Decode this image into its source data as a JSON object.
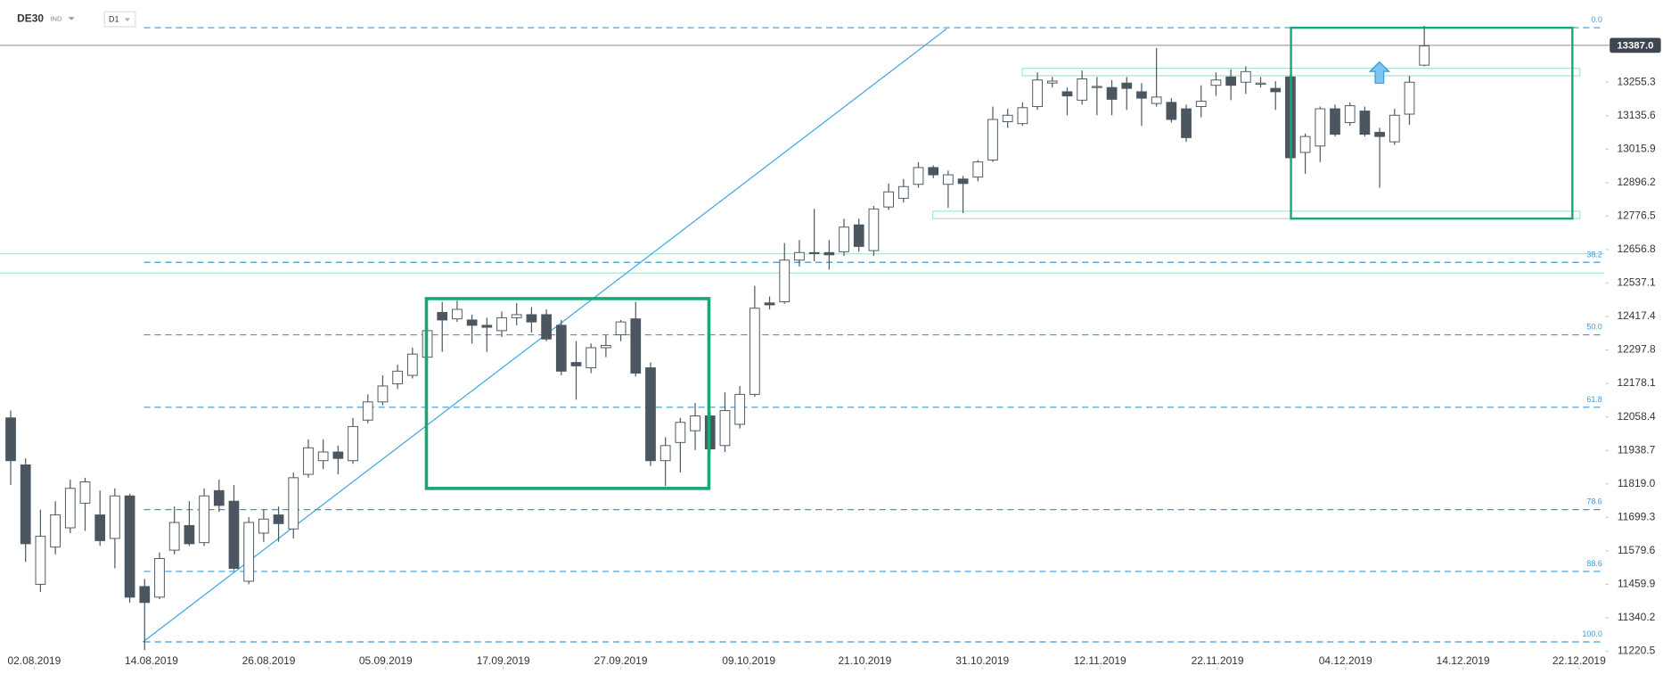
{
  "chart_data": {
    "type": "candlestick",
    "title": "DE30",
    "subtitle": "IND",
    "timeframe": "D1",
    "up_color": "#ffffff",
    "down_color": "#4b5660",
    "outline_color": "#4b5660",
    "open": [
      12055,
      11887,
      11460,
      11593,
      11662,
      11750,
      11708,
      11624,
      11776,
      11452,
      11414,
      11582,
      11670,
      11609,
      11795,
      11757,
      11471,
      11643,
      11708,
      11658,
      11853,
      11902,
      11933,
      11902,
      12047,
      12112,
      12177,
      12207,
      12272,
      12432,
      12409,
      12405,
      12386,
      12367,
      12413,
      12424,
      12424,
      12386,
      12253,
      12234,
      12306,
      12352,
      12409,
      12234,
      11902,
      11967,
      12009,
      12062,
      11956,
      12032,
      12139,
      12466,
      12470,
      12619,
      12646,
      12646,
      12649,
      12745,
      12653,
      12809,
      12840,
      12890,
      12950,
      12890,
      12909,
      12916,
      12977,
      13114,
      13107,
      13168,
      13252,
      13221,
      13191,
      13236,
      13236,
      13252,
      13221,
      13179,
      13183,
      13160,
      13168,
      13244,
      13274,
      13255,
      13248,
      13233,
      13274,
      13004,
      13027,
      13160,
      13111,
      13152,
      13076,
      13042,
      13141,
      13316
    ],
    "high": [
      12081,
      11910,
      11727,
      11757,
      11834,
      11841,
      11795,
      11803,
      11784,
      11479,
      11574,
      11738,
      11757,
      11803,
      11834,
      11815,
      11700,
      11727,
      11738,
      11860,
      11978,
      11978,
      11956,
      12055,
      12139,
      12207,
      12245,
      12306,
      12386,
      12470,
      12474,
      12424,
      12413,
      12436,
      12466,
      12451,
      12443,
      12405,
      12329,
      12321,
      12352,
      12405,
      12470,
      12253,
      11986,
      12055,
      12108,
      12081,
      12146,
      12169,
      12527,
      12489,
      12680,
      12691,
      12802,
      12691,
      12767,
      12767,
      12813,
      12893,
      12909,
      12970,
      12958,
      12939,
      12920,
      12977,
      13168,
      13160,
      13183,
      13290,
      13274,
      13236,
      13297,
      13274,
      13263,
      13274,
      13252,
      13377,
      13198,
      13175,
      13244,
      13290,
      13301,
      13312,
      13274,
      13259,
      13282,
      13072,
      13168,
      13175,
      13183,
      13168,
      13092,
      13160,
      13278,
      13457
    ],
    "low": [
      11815,
      11540,
      11433,
      11567,
      11643,
      11651,
      11597,
      11517,
      11395,
      11225,
      11407,
      11567,
      11597,
      11597,
      11719,
      11510,
      11460,
      11612,
      11612,
      11624,
      11841,
      11872,
      11853,
      11891,
      12036,
      12100,
      12158,
      12196,
      12253,
      12291,
      12398,
      12321,
      12291,
      12344,
      12386,
      12360,
      12329,
      12207,
      12120,
      12215,
      12272,
      12329,
      12203,
      11883,
      11811,
      11860,
      11940,
      11929,
      11933,
      12017,
      12131,
      12443,
      12463,
      12596,
      12615,
      12585,
      12634,
      12649,
      12634,
      12798,
      12825,
      12878,
      12912,
      12806,
      12787,
      12901,
      12970,
      13092,
      13099,
      13156,
      13236,
      13137,
      13175,
      13137,
      13137,
      13156,
      13099,
      13168,
      13111,
      13042,
      13130,
      13206,
      13191,
      13213,
      13236,
      13156,
      12977,
      12928,
      12970,
      13061,
      13099,
      13061,
      12878,
      13031,
      13103,
      13312
    ],
    "close": [
      11902,
      11605,
      11632,
      11708,
      11803,
      11826,
      11616,
      11776,
      11414,
      11395,
      11552,
      11681,
      11605,
      11776,
      11742,
      11517,
      11681,
      11693,
      11677,
      11841,
      11948,
      11933,
      11910,
      12024,
      12112,
      12169,
      12222,
      12283,
      12367,
      12405,
      12443,
      12386,
      12379,
      12413,
      12424,
      12398,
      12337,
      12222,
      12241,
      12306,
      12314,
      12398,
      12215,
      11902,
      11956,
      12039,
      12062,
      11944,
      12081,
      12139,
      12447,
      12459,
      12619,
      12646,
      12642,
      12638,
      12737,
      12668,
      12802,
      12863,
      12882,
      12950,
      12924,
      12924,
      12893,
      12970,
      13122,
      13137,
      13164,
      13263,
      13259,
      13206,
      13267,
      13240,
      13194,
      13233,
      13198,
      13202,
      13122,
      13057,
      13187,
      13263,
      13244,
      13293,
      13252,
      13221,
      12985,
      13061,
      13160,
      13069,
      13171,
      13069,
      13061,
      13137,
      13255,
      13385
    ],
    "xlim": [
      -0.72,
      107.1
    ],
    "xticks": [
      {
        "value": 1.58,
        "label": "02.08.2019"
      },
      {
        "value": 9.46,
        "label": "14.08.2019"
      },
      {
        "value": 17.34,
        "label": "26.08.2019"
      },
      {
        "value": 25.2,
        "label": "05.09.2019"
      },
      {
        "value": 33.1,
        "label": "17.09.2019"
      },
      {
        "value": 41.0,
        "label": "27.09.2019"
      },
      {
        "value": 49.6,
        "label": "09.10.2019"
      },
      {
        "value": 57.4,
        "label": "21.10.2019"
      },
      {
        "value": 65.3,
        "label": "31.10.2019"
      },
      {
        "value": 73.2,
        "label": "12.11.2019"
      },
      {
        "value": 81.1,
        "label": "22.11.2019"
      },
      {
        "value": 89.7,
        "label": "04.12.2019"
      },
      {
        "value": 97.6,
        "label": "14.12.2019"
      },
      {
        "value": 105.4,
        "label": "22.12.2019"
      }
    ],
    "ylim": [
      11166,
      13549
    ],
    "yticks": [
      13255.3,
      13135.6,
      13015.9,
      12896.2,
      12776.5,
      12656.8,
      12537.1,
      12417.4,
      12297.8,
      12178.1,
      12058.4,
      11938.7,
      {
        "value": 11819,
        "label": "11819.0"
      },
      11699.3,
      11579.6,
      11459.9,
      11340.2,
      11220.5
    ],
    "last_price": {
      "value": 13387,
      "label": "13387.0"
    },
    "fib_color": "#3a9ad9",
    "fib_levels": [
      {
        "label": "0.0",
        "value": 13450
      },
      {
        "label": "38.2",
        "value": 12611
      },
      {
        "label": "50.0",
        "value": 12352
      },
      {
        "label": "61.8",
        "value": 12093
      },
      {
        "label": "78.6",
        "value": 11727
      },
      {
        "label": "88.6",
        "value": 11506
      },
      {
        "label": "100.0",
        "value": 11254
      }
    ]
  }
}
